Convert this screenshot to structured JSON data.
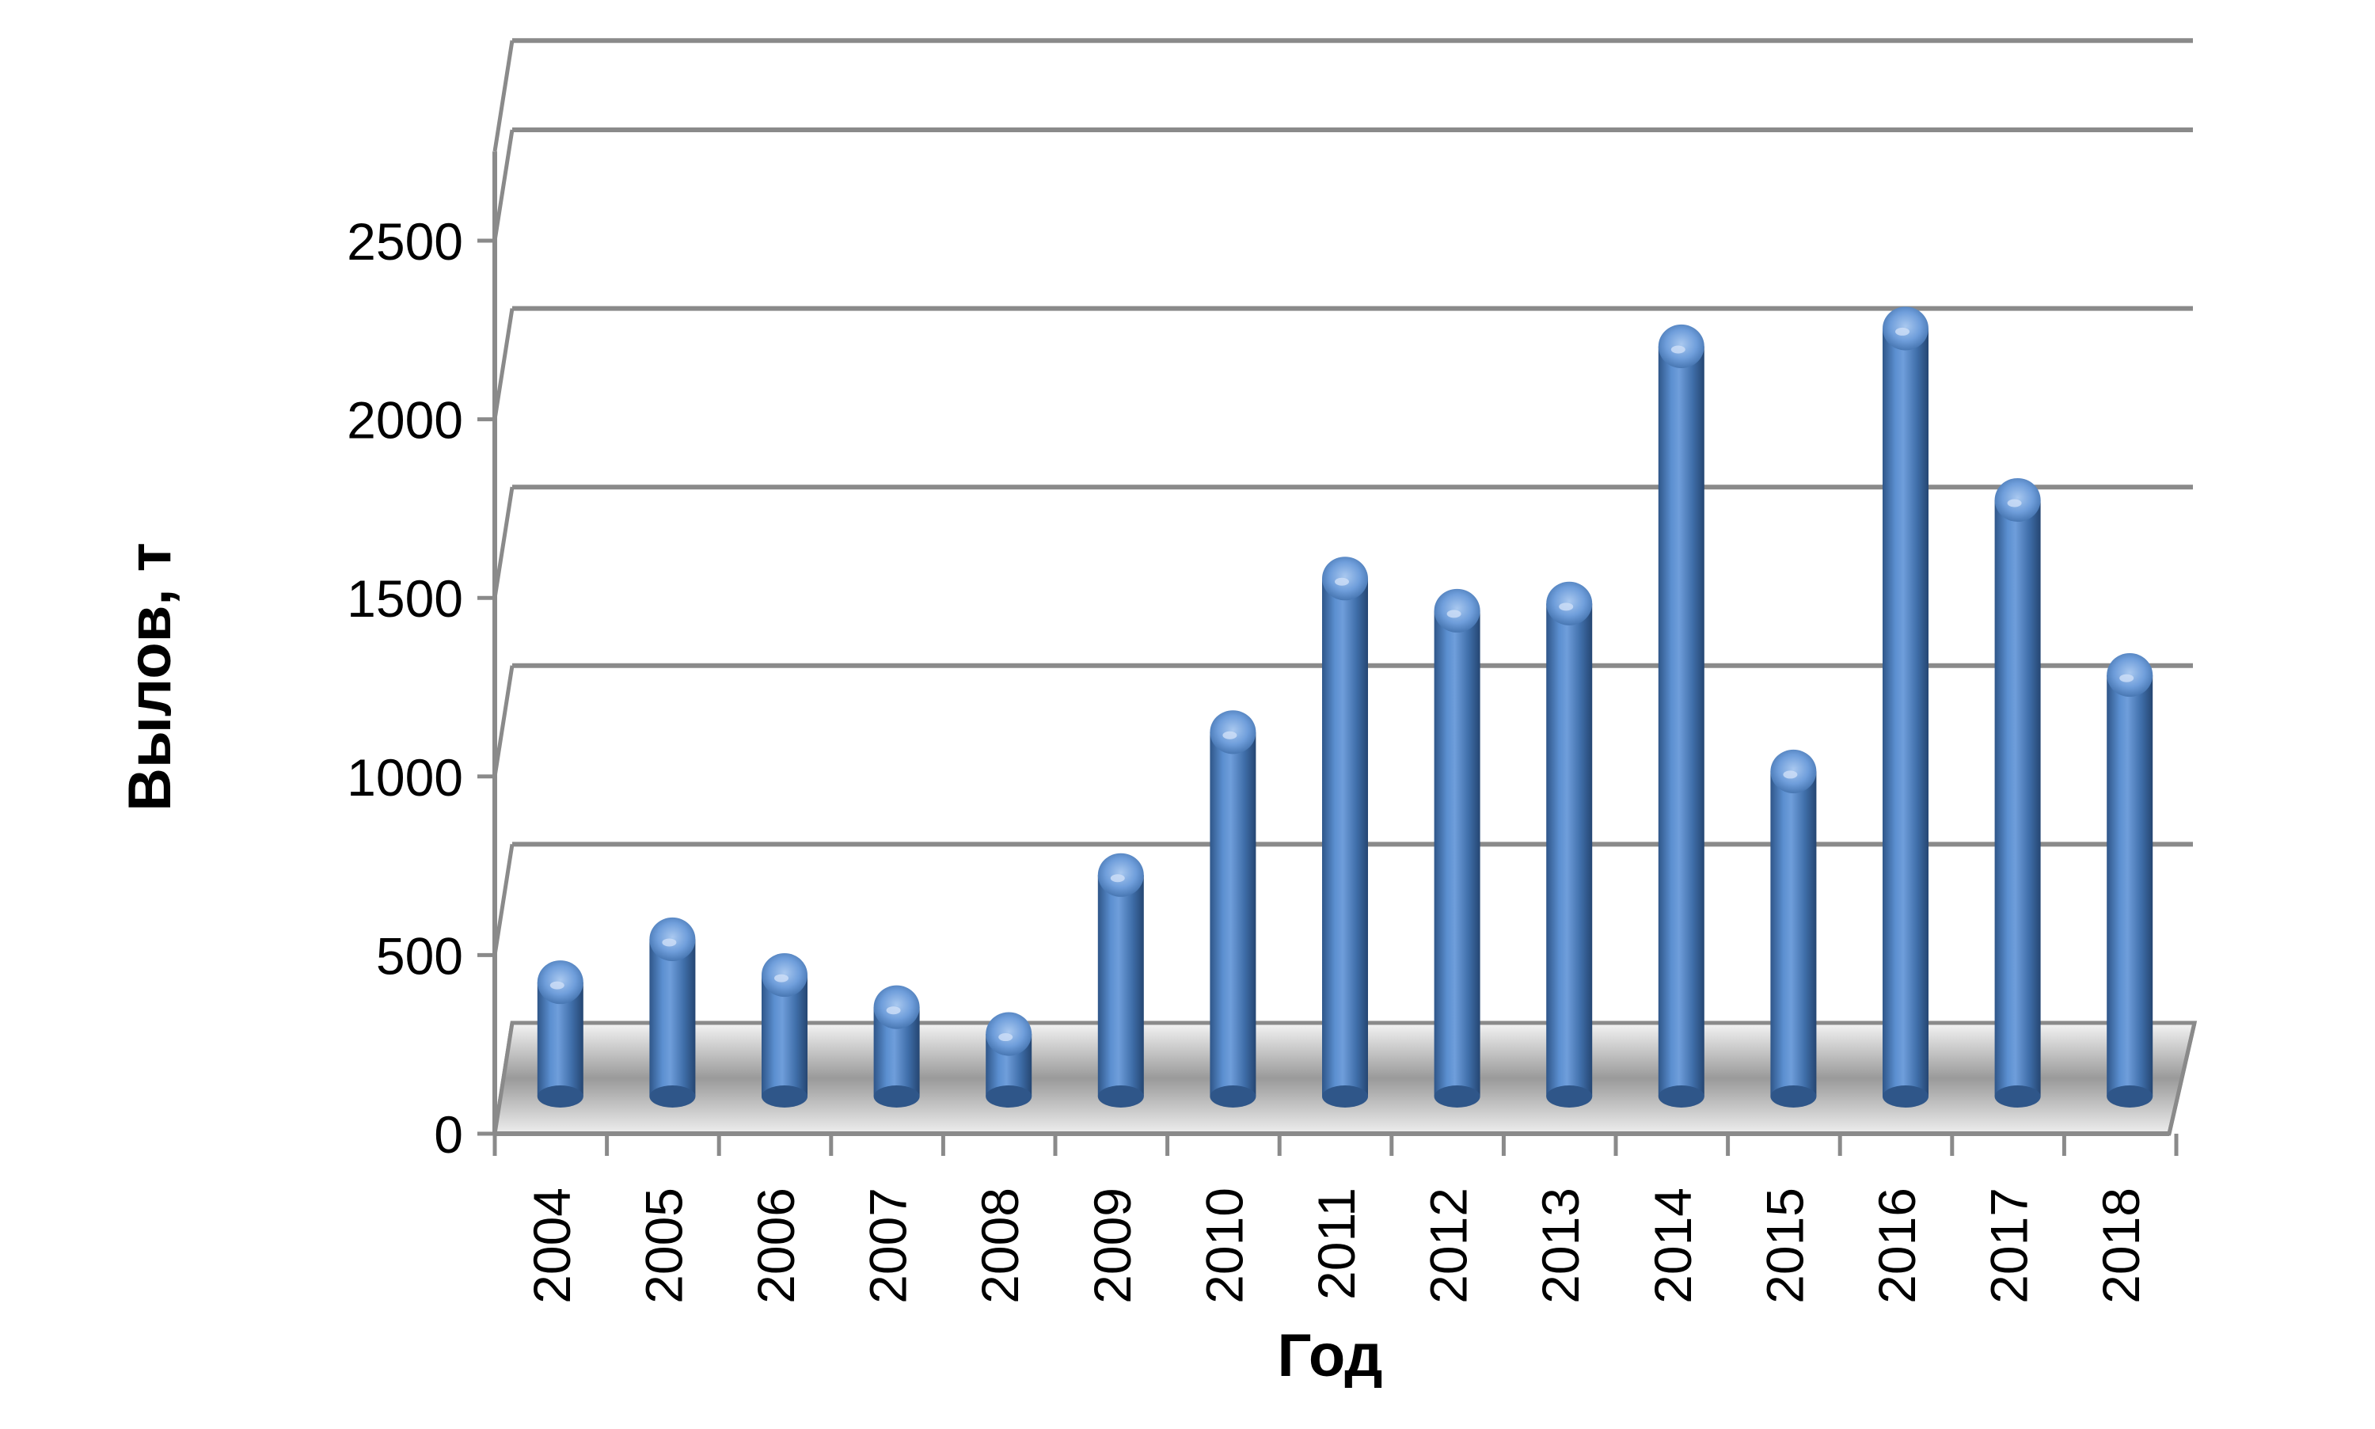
{
  "chart_data": {
    "type": "bar",
    "style": "3d-cylinder",
    "title": "",
    "xlabel": "Год",
    "ylabel": "Вылов, т",
    "ylim": [
      0,
      2500
    ],
    "yticks": [
      0,
      500,
      1000,
      1500,
      2000,
      2500
    ],
    "grid": true,
    "legend": "none",
    "categories": [
      "2004",
      "2005",
      "2006",
      "2007",
      "2008",
      "2009",
      "2010",
      "2011",
      "2012",
      "2013",
      "2014",
      "2015",
      "2016",
      "2017",
      "2018"
    ],
    "series": [
      {
        "color": "#4f81bd",
        "values": [
          320,
          440,
          340,
          250,
          175,
          620,
          1020,
          1450,
          1360,
          1380,
          2100,
          910,
          2150,
          1670,
          1180
        ]
      }
    ]
  }
}
